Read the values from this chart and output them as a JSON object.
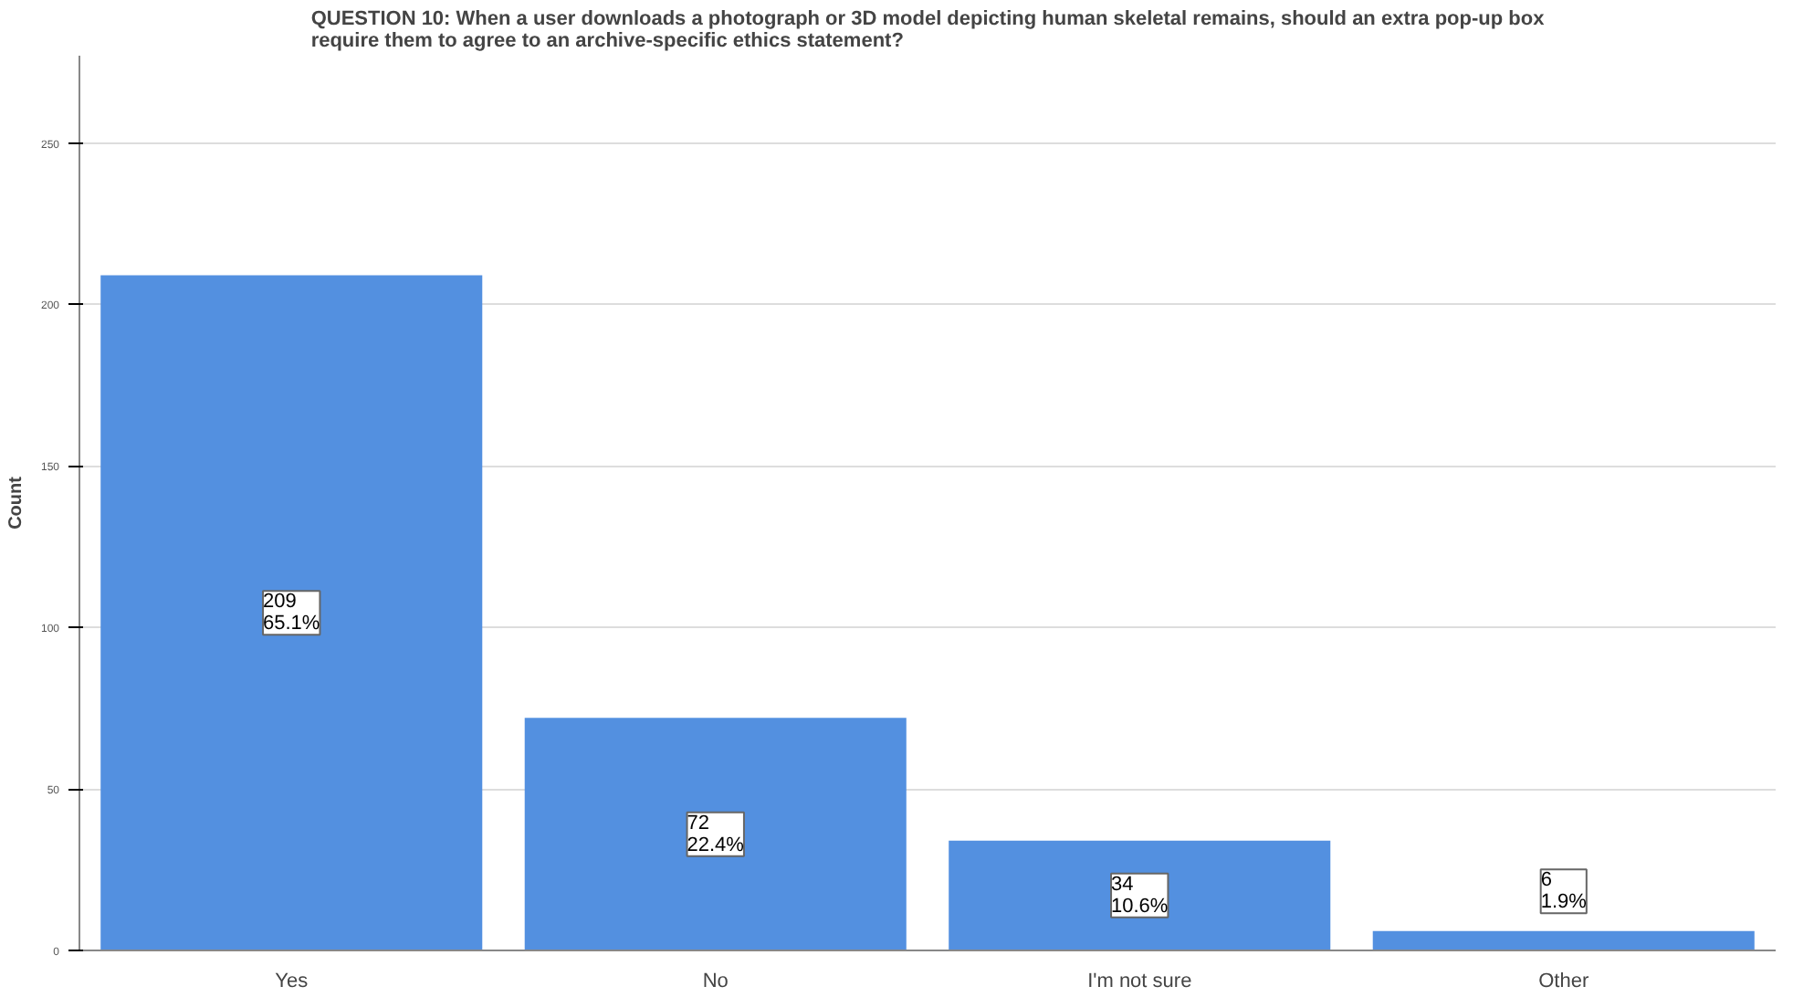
{
  "chart_data": {
    "type": "bar",
    "title": "QUESTION 10: When a user downloads a photograph or 3D model depicting human skeletal remains, should an extra pop-up box\nrequire them to agree to an archive-specific ethics statement?",
    "ylabel": "Count",
    "categories": [
      "Yes",
      "No",
      "I'm not sure",
      "Other"
    ],
    "values": [
      209,
      72,
      34,
      6
    ],
    "value_labels": [
      "209\n65.1%",
      "72\n22.4%",
      "34\n10.6%",
      "6\n1.9%"
    ],
    "color": "#5390e0",
    "ylim": [
      0,
      277
    ],
    "yticks": [
      0,
      50,
      100,
      150,
      200,
      250
    ],
    "grid": "y"
  }
}
